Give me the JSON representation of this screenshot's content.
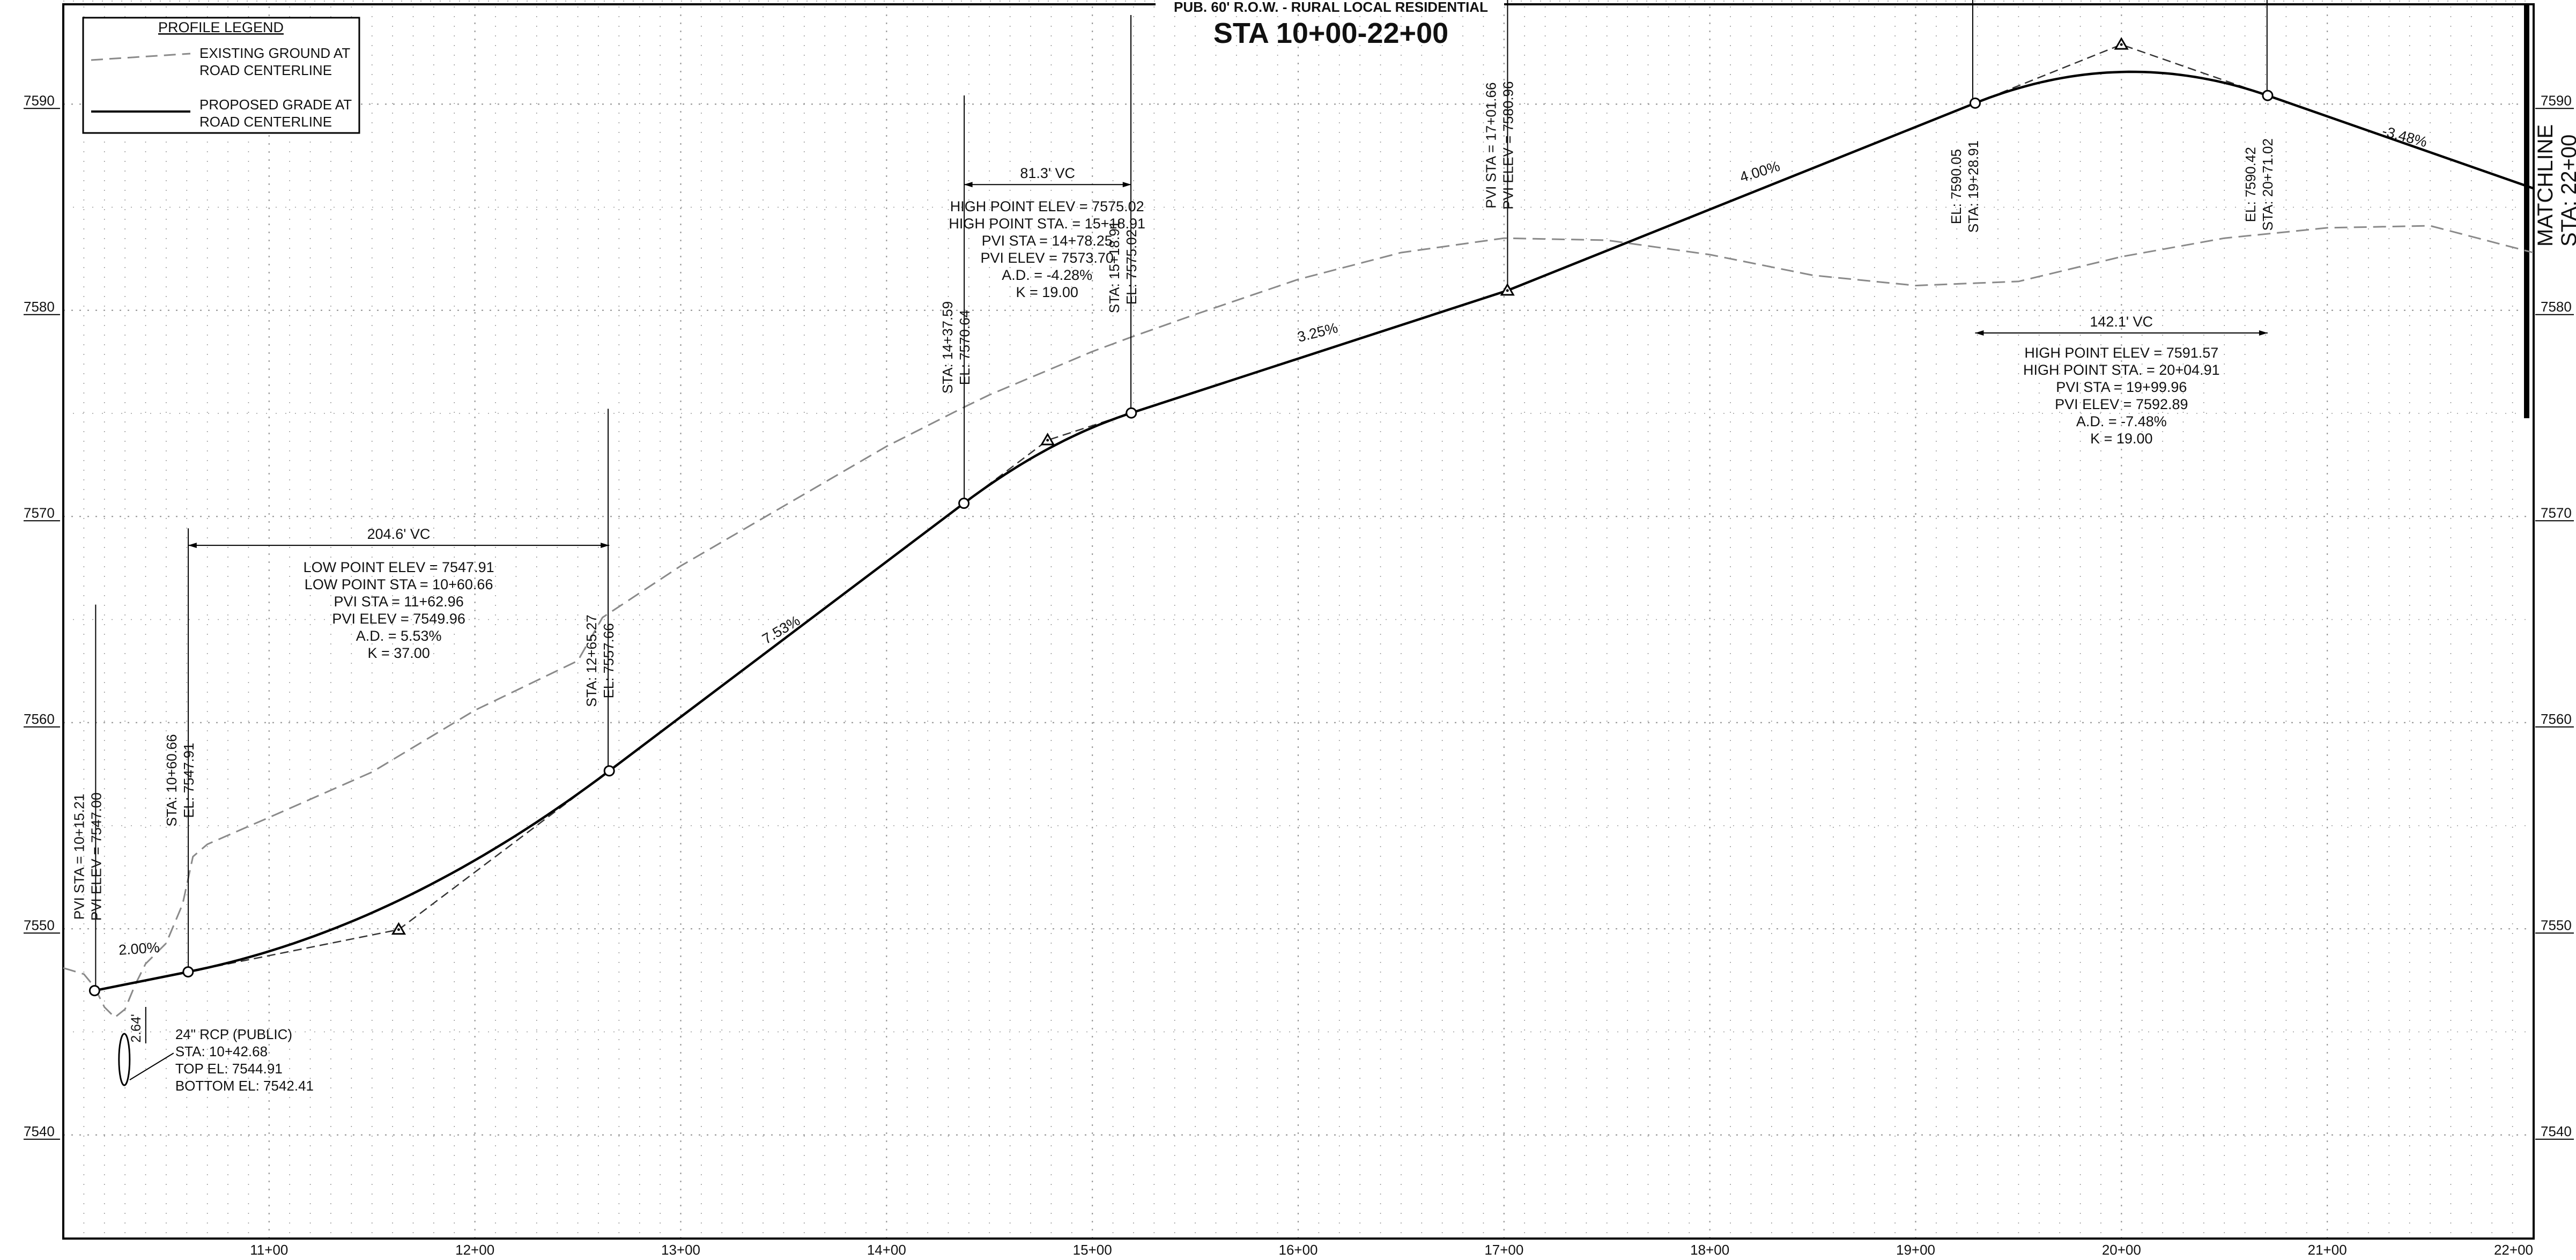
{
  "header": {
    "subtitle": "PUB. 60' R.O.W. - RURAL LOCAL RESIDENTIAL",
    "title": "STA 10+00-22+00"
  },
  "legend": {
    "heading": "PROFILE LEGEND",
    "items": [
      {
        "line1": "EXISTING GROUND AT",
        "line2": "ROAD CENTERLINE",
        "style": "dashed"
      },
      {
        "line1": "PROPOSED GRADE AT",
        "line2": "ROAD CENTERLINE",
        "style": "solid"
      }
    ]
  },
  "matchline": {
    "line1": "MATCHLINE",
    "line2": "STA: 22+00"
  },
  "colors": {
    "proposed": "#000000",
    "existing": "#8a8a8a",
    "grid": "#9a9a9a"
  },
  "chart_data": {
    "type": "line",
    "x_unit": "station (ft)",
    "xlim": [
      1000,
      2200
    ],
    "ylim": [
      7535,
      7595
    ],
    "x_ticks": [
      {
        "sta": 1100,
        "label": "11+00"
      },
      {
        "sta": 1200,
        "label": "12+00"
      },
      {
        "sta": 1300,
        "label": "13+00"
      },
      {
        "sta": 1400,
        "label": "14+00"
      },
      {
        "sta": 1500,
        "label": "15+00"
      },
      {
        "sta": 1600,
        "label": "16+00"
      },
      {
        "sta": 1700,
        "label": "17+00"
      },
      {
        "sta": 1800,
        "label": "18+00"
      },
      {
        "sta": 1900,
        "label": "19+00"
      },
      {
        "sta": 2000,
        "label": "20+00"
      },
      {
        "sta": 2100,
        "label": "21+00"
      },
      {
        "sta": 2200,
        "label": "22+00"
      }
    ],
    "y_ticks": [
      {
        "elev": 7540,
        "label": "7540"
      },
      {
        "elev": 7550,
        "label": "7550"
      },
      {
        "elev": 7560,
        "label": "7560"
      },
      {
        "elev": 7570,
        "label": "7570"
      },
      {
        "elev": 7580,
        "label": "7580"
      },
      {
        "elev": 7590,
        "label": "7590"
      }
    ],
    "existing_ground": [
      [
        1000,
        7548.1
      ],
      [
        1010,
        7547.8
      ],
      [
        1015,
        7547.2
      ],
      [
        1020,
        7546.2
      ],
      [
        1025,
        7545.7
      ],
      [
        1030,
        7546.1
      ],
      [
        1035,
        7547.3
      ],
      [
        1040,
        7548.3
      ],
      [
        1050,
        7549.3
      ],
      [
        1058,
        7551.2
      ],
      [
        1063,
        7553.5
      ],
      [
        1070,
        7554.1
      ],
      [
        1100,
        7555.4
      ],
      [
        1150,
        7557.6
      ],
      [
        1200,
        7560.6
      ],
      [
        1250,
        7563.0
      ],
      [
        1262,
        7565.1
      ],
      [
        1300,
        7567.6
      ],
      [
        1350,
        7570.5
      ],
      [
        1400,
        7573.4
      ],
      [
        1437.6,
        7575.3
      ],
      [
        1450,
        7575.9
      ],
      [
        1500,
        7578.0
      ],
      [
        1518.9,
        7578.7
      ],
      [
        1550,
        7579.8
      ],
      [
        1600,
        7581.5
      ],
      [
        1650,
        7582.8
      ],
      [
        1700,
        7583.5
      ],
      [
        1750,
        7583.4
      ],
      [
        1800,
        7582.7
      ],
      [
        1850,
        7581.7
      ],
      [
        1900,
        7581.2
      ],
      [
        1950,
        7581.4
      ],
      [
        2000,
        7582.6
      ],
      [
        2050,
        7583.5
      ],
      [
        2100,
        7584.0
      ],
      [
        2150,
        7584.1
      ],
      [
        2200,
        7582.8
      ]
    ],
    "vertical_curves": [
      {
        "bvc": 1060.66,
        "pvi": 1162.96,
        "evc": 1265.27,
        "bvc_el": 7547.91,
        "pvi_el": 7549.96,
        "evc_el": 7557.66
      },
      {
        "bvc": 1437.59,
        "pvi": 1478.25,
        "evc": 1518.91,
        "bvc_el": 7570.64,
        "pvi_el": 7573.7,
        "evc_el": 7575.02
      },
      {
        "bvc": 1928.91,
        "pvi": 1999.96,
        "evc": 2071.02,
        "bvc_el": 7590.05,
        "pvi_el": 7592.89,
        "evc_el": 7590.42
      }
    ],
    "tangent_points": [
      {
        "sta": 1015.21,
        "el": 7547.0
      },
      {
        "sta": 1701.66,
        "el": 7580.96
      },
      {
        "sta": 2200,
        "el": 7585.92
      }
    ],
    "grade_labels": [
      {
        "text": "2.00%",
        "sta": 1037,
        "el": 7548.8,
        "angle": -4
      },
      {
        "text": "7.53%",
        "sta": 1350,
        "el": 7564.3,
        "angle": -31
      },
      {
        "text": "3.25%",
        "sta": 1610,
        "el": 7578.7,
        "angle": -14
      },
      {
        "text": "4.00%",
        "sta": 1825,
        "el": 7586.5,
        "angle": -17
      },
      {
        "text": "-3.48%",
        "sta": 2137,
        "el": 7588.2,
        "angle": 15
      }
    ],
    "vc_info": [
      {
        "len_label": "204.6' VC",
        "dim_el": 7568.6,
        "lines": [
          "LOW POINT ELEV = 7547.91",
          "LOW POINT STA = 10+60.66",
          "PVI STA = 11+62.96",
          "PVI ELEV = 7549.96",
          "A.D. = 5.53%",
          "K = 37.00"
        ],
        "center_sta": 1163,
        "top_el": 7567.3,
        "dim_from": 1060.66,
        "dim_to": 1265.27
      },
      {
        "len_label": "81.3' VC",
        "dim_el": 7586.1,
        "lines": [
          "HIGH POINT ELEV = 7575.02",
          "HIGH POINT STA. = 15+18.91",
          "PVI STA = 14+78.25",
          "PVI ELEV = 7573.70",
          "A.D. = -4.28%",
          "K = 19.00"
        ],
        "center_sta": 1478,
        "top_el": 7584.8,
        "dim_from": 1437.59,
        "dim_to": 1518.91
      },
      {
        "len_label": "142.1' VC",
        "dim_el": 7578.9,
        "lines": [
          "HIGH POINT ELEV = 7591.57",
          "HIGH POINT STA. = 20+04.91",
          "PVI STA = 19+99.96",
          "PVI ELEV = 7592.89",
          "A.D. = -7.48%",
          "K = 19.00"
        ],
        "center_sta": 2000,
        "top_el": 7577.7,
        "dim_from": 1928.91,
        "dim_to": 2071.02
      }
    ],
    "station_callouts": [
      {
        "lines": [
          "PVI STA = 10+15.21",
          "PVI ELEV = 7547.00"
        ],
        "sta": 1010,
        "el": 7553.5,
        "leader_to": 7547.0
      },
      {
        "lines": [
          "STA: 10+60.66",
          "EL: 7547.91"
        ],
        "sta": 1055,
        "el": 7557.2,
        "leader_to": 7547.91
      },
      {
        "lines": [
          "STA: 12+65.27",
          "EL: 7557.66"
        ],
        "sta": 1259,
        "el": 7563.0,
        "leader_to": 7557.66
      },
      {
        "lines": [
          "STA: 14+37.59",
          "EL: 7570.64"
        ],
        "sta": 1432,
        "el": 7578.2,
        "leader_to": 7570.64
      },
      {
        "lines": [
          "STA: 15+18.91",
          "EL: 7575.02"
        ],
        "sta": 1513,
        "el": 7582.1,
        "leader_to": 7575.02
      },
      {
        "lines": [
          "PVI STA = 17+01.66",
          "PVI ELEV = 7580.96"
        ],
        "sta": 1696,
        "el": 7588.0,
        "leader_to": 7580.96
      },
      {
        "lines": [
          "EL: 7590.05",
          "STA: 19+28.91"
        ],
        "sta": 1922,
        "el": 7586.0,
        "leader_to": 7590.05
      },
      {
        "lines": [
          "EL: 7590.42",
          "STA: 20+71.02"
        ],
        "sta": 2065,
        "el": 7586.1,
        "leader_to": 7590.42
      }
    ],
    "culvert": {
      "sta": 1042.68,
      "top_el": 7544.91,
      "bottom_el": 7542.41,
      "lines": [
        "24\" RCP (PUBLIC)",
        "STA: 10+42.68",
        "TOP EL: 7544.91",
        "BOTTOM EL: 7542.41"
      ],
      "cover_label": "2.64'"
    }
  }
}
